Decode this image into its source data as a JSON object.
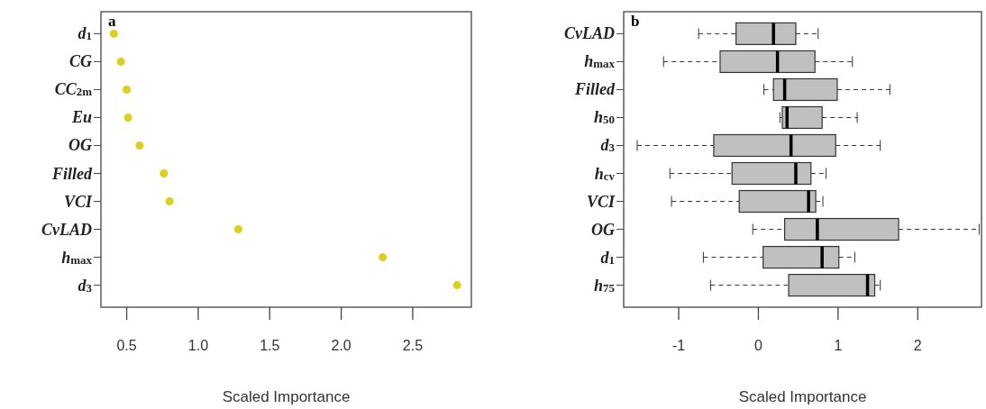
{
  "chart_data": [
    {
      "type": "scatter",
      "title": "a",
      "orientation": "horizontal",
      "xlabel": "Scaled Importance",
      "categories": [
        "d$_{1}$",
        "CG",
        "CC$_{2m}$",
        "Eu",
        "OG",
        "Filled",
        "VCI",
        "CvLAD",
        "h$_{max}$",
        "d$_{3}$"
      ],
      "series": [
        {
          "color": "#dccf1e",
          "values": [
            0.41,
            0.46,
            0.5,
            0.51,
            0.59,
            0.76,
            0.8,
            1.28,
            2.29,
            2.81
          ]
        }
      ],
      "marker": "circle",
      "xlim": [
        0.32,
        2.91
      ],
      "xticks": [
        {
          "value": 0.5,
          "label": "0.5"
        },
        {
          "value": 1,
          "label": "1.0"
        },
        {
          "value": 1.5,
          "label": "1.5"
        },
        {
          "value": 2,
          "label": "2.0"
        },
        {
          "value": 2.5,
          "label": "2.5"
        }
      ],
      "grid": false
    },
    {
      "type": "box",
      "title": "b",
      "orientation": "horizontal",
      "xlabel": "Scaled Importance",
      "categories": [
        "CvLAD",
        "h$_{max}$",
        "Filled",
        "h$_{50}$",
        "d$_{3}$",
        "h$_{cv}$",
        "VCI",
        "OG",
        "d$_{1}$",
        "h$_{75}$"
      ],
      "color": "#c0c0c0",
      "boxes": [
        {
          "low": -0.75,
          "q1": -0.28,
          "median": 0.19,
          "q3": 0.47,
          "high": 0.75
        },
        {
          "low": -1.19,
          "q1": -0.48,
          "median": 0.24,
          "q3": 0.71,
          "high": 1.18
        },
        {
          "low": 0.07,
          "q1": 0.19,
          "median": 0.33,
          "q3": 0.99,
          "high": 1.65
        },
        {
          "low": 0.27,
          "q1": 0.3,
          "median": 0.36,
          "q3": 0.8,
          "high": 1.24
        },
        {
          "low": -1.52,
          "q1": -0.56,
          "median": 0.41,
          "q3": 0.97,
          "high": 1.53
        },
        {
          "low": -1.11,
          "q1": -0.33,
          "median": 0.47,
          "q3": 0.66,
          "high": 0.85
        },
        {
          "low": -1.09,
          "q1": -0.24,
          "median": 0.63,
          "q3": 0.72,
          "high": 0.81
        },
        {
          "low": -0.07,
          "q1": 0.33,
          "median": 0.74,
          "q3": 1.76,
          "high": 2.77
        },
        {
          "low": -0.69,
          "q1": 0.06,
          "median": 0.8,
          "q3": 1.01,
          "high": 1.21
        },
        {
          "low": -0.6,
          "q1": 0.38,
          "median": 1.37,
          "q3": 1.46,
          "high": 1.53
        }
      ],
      "xlim": [
        -1.69,
        2.8
      ],
      "xticks": [
        -1,
        0,
        1,
        2
      ],
      "grid": false
    }
  ]
}
